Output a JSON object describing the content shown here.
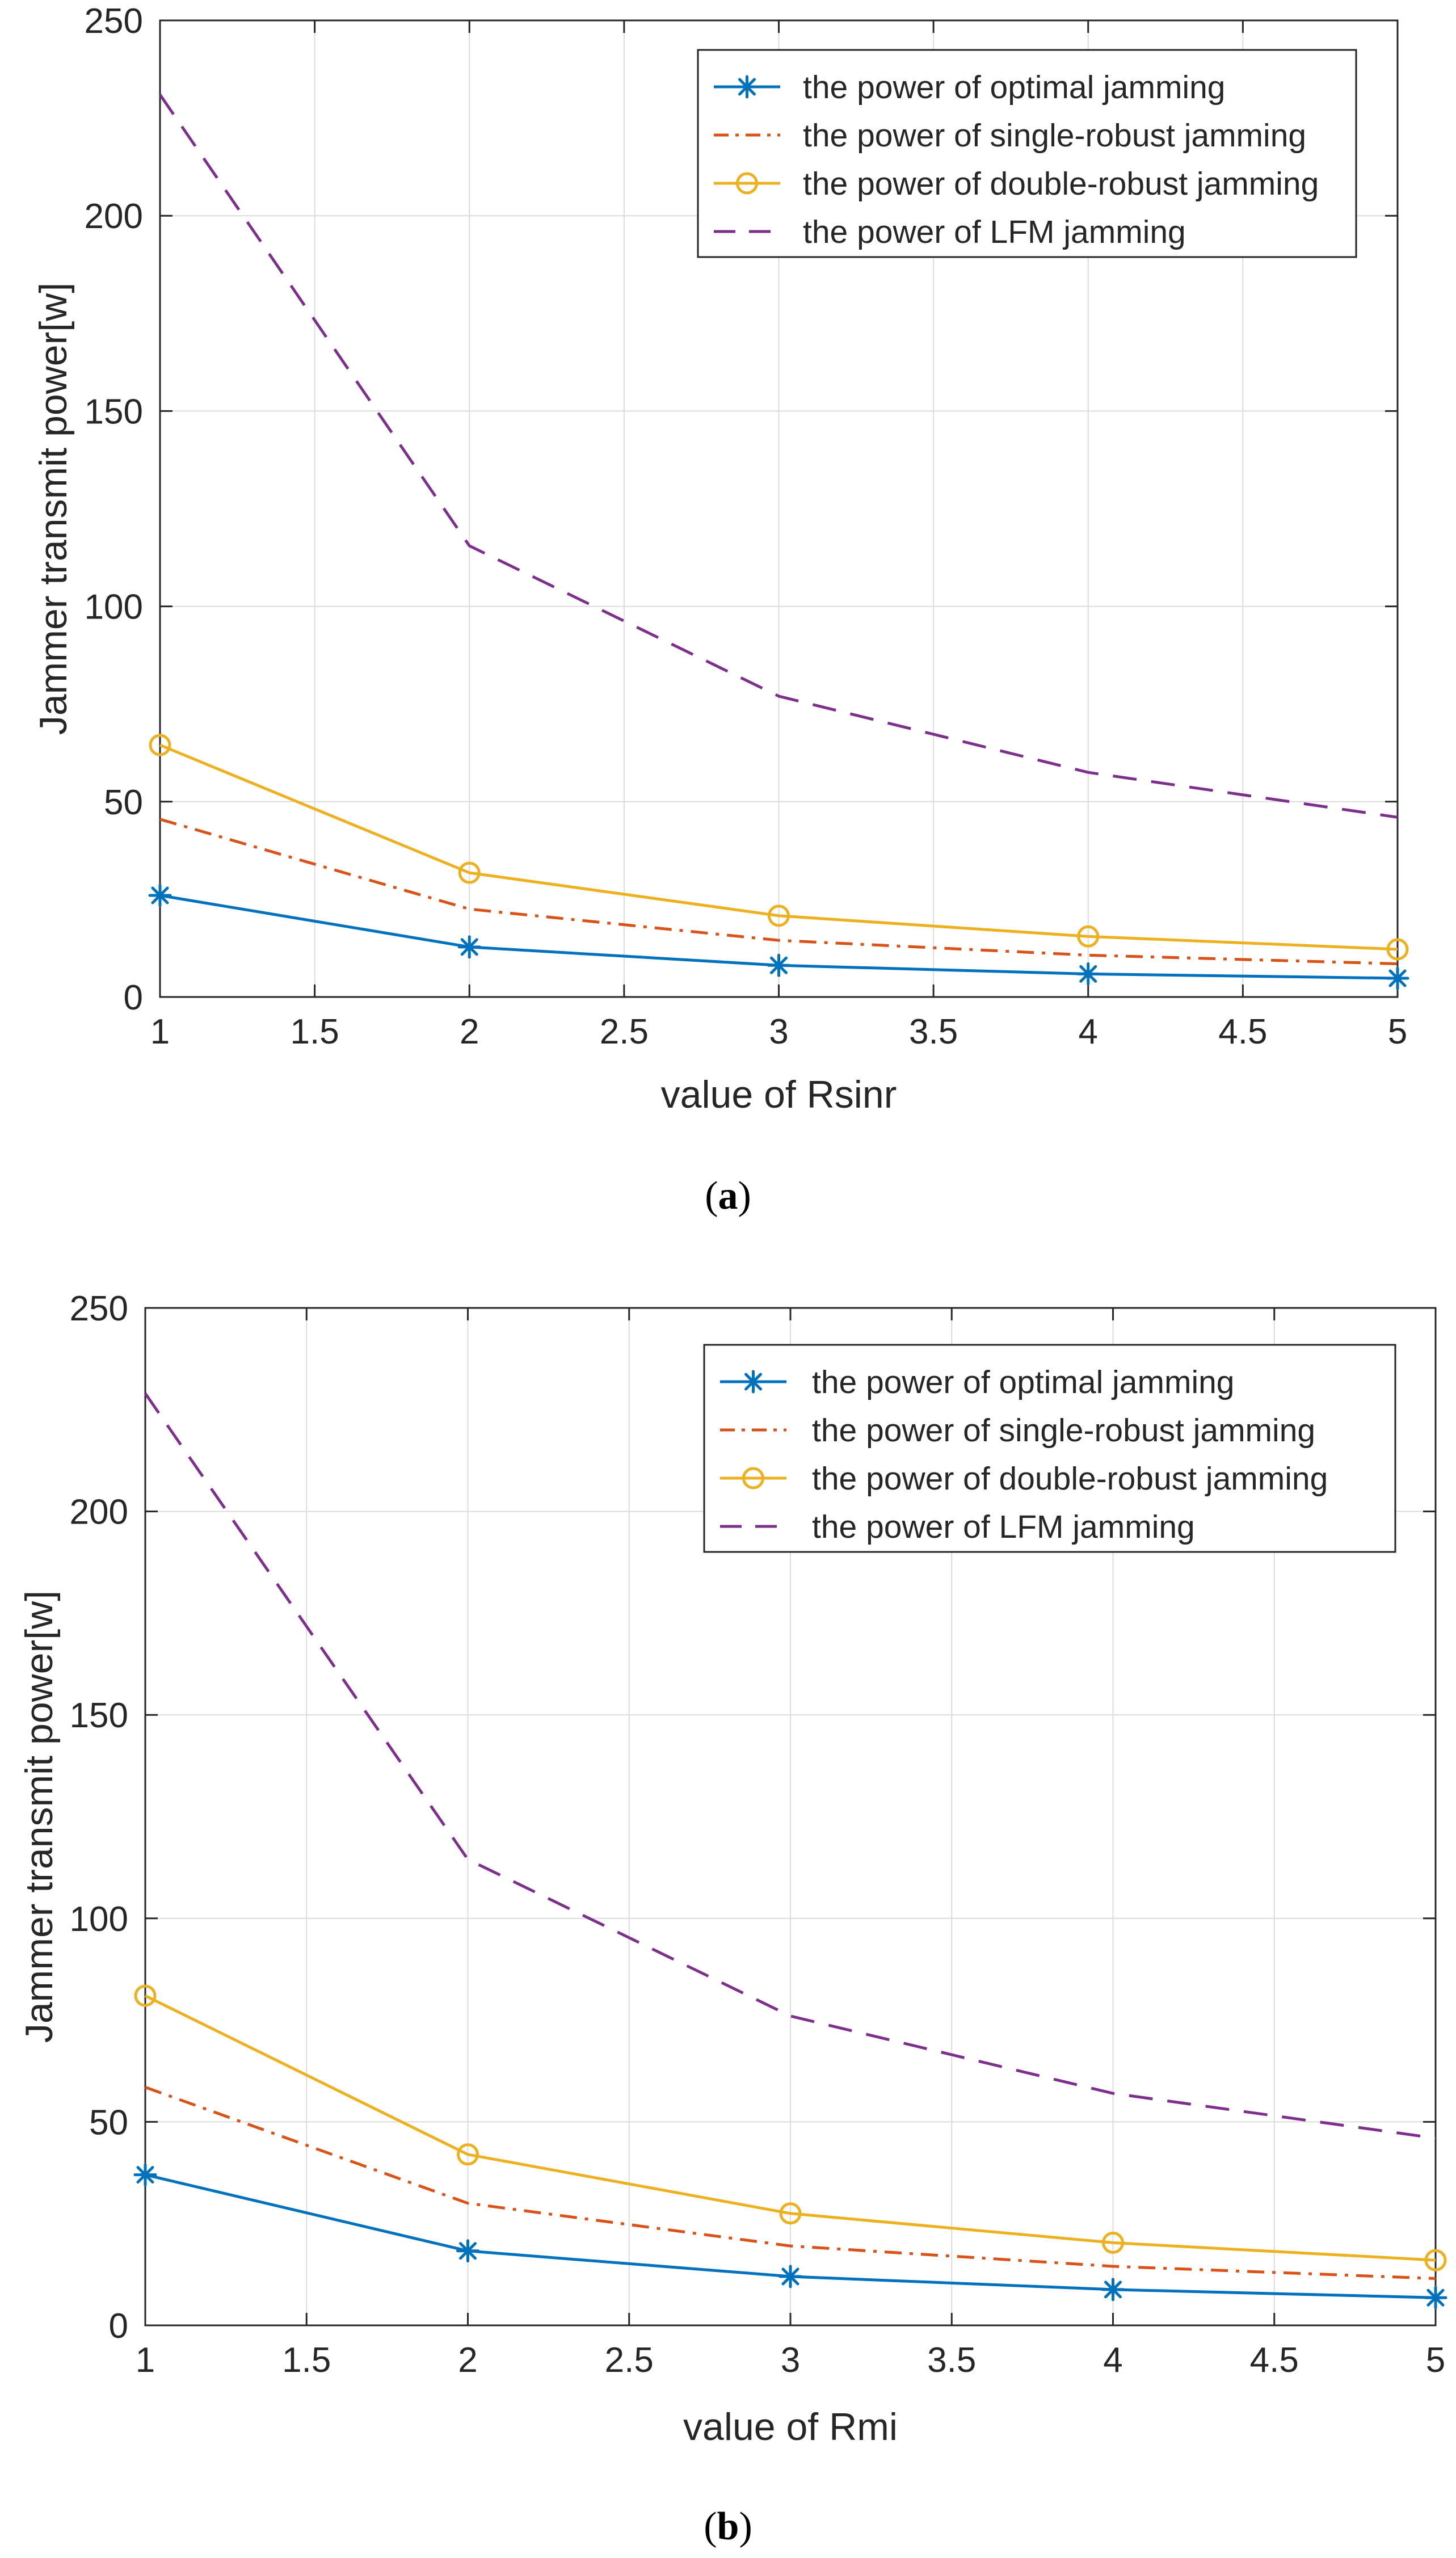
{
  "figure": {
    "colors": {
      "optimal": "#0072BD",
      "single": "#D95319",
      "double": "#EDB120",
      "lfm": "#7E2F8E",
      "grid": "#dcdcdc",
      "axis": "#262626"
    }
  },
  "chart_data": [
    {
      "id": "a",
      "type": "line",
      "caption": {
        "open": "(",
        "letter": "a",
        "close": ")"
      },
      "xlabel": "value of Rsinr",
      "ylabel": "Jammer transmit power[w]",
      "xlim": [
        1,
        5
      ],
      "ylim": [
        0,
        250
      ],
      "xticks": [
        1,
        1.5,
        2,
        2.5,
        3,
        3.5,
        4,
        4.5,
        5
      ],
      "xtick_labels": [
        "1",
        "1.5",
        "2",
        "2.5",
        "3",
        "3.5",
        "4",
        "4.5",
        "5"
      ],
      "yticks": [
        0,
        50,
        100,
        150,
        200,
        250
      ],
      "ytick_labels": [
        "0",
        "50",
        "100",
        "150",
        "200",
        "250"
      ],
      "grid": true,
      "legend_position": "top-right",
      "x": [
        1,
        2,
        3,
        4,
        5
      ],
      "series": [
        {
          "key": "optimal",
          "name": "the power of optimal jamming",
          "values": [
            26,
            12.8,
            8.1,
            5.9,
            4.8
          ],
          "style": "solid",
          "marker": "asterisk"
        },
        {
          "key": "single",
          "name": "the power of single-robust jamming",
          "values": [
            45.5,
            22.5,
            14.5,
            10.7,
            8.5
          ],
          "style": "dashdot",
          "marker": "none"
        },
        {
          "key": "double",
          "name": "the power of double-robust jamming",
          "values": [
            64.5,
            31.8,
            20.8,
            15.5,
            12.2
          ],
          "style": "solid",
          "marker": "circle"
        },
        {
          "key": "lfm",
          "name": "the power of LFM jamming",
          "values": [
            231,
            115.5,
            77,
            57.5,
            46
          ],
          "style": "dashed",
          "marker": "none"
        }
      ]
    },
    {
      "id": "b",
      "type": "line",
      "caption": {
        "open": "(",
        "letter": "b",
        "close": ")"
      },
      "xlabel": "value of Rmi",
      "ylabel": "Jammer transmit power[w]",
      "xlim": [
        1,
        5
      ],
      "ylim": [
        0,
        250
      ],
      "xticks": [
        1,
        1.5,
        2,
        2.5,
        3,
        3.5,
        4,
        4.5,
        5
      ],
      "xtick_labels": [
        "1",
        "1.5",
        "2",
        "2.5",
        "3",
        "3.5",
        "4",
        "4.5",
        "5"
      ],
      "yticks": [
        0,
        50,
        100,
        150,
        200,
        250
      ],
      "ytick_labels": [
        "0",
        "50",
        "100",
        "150",
        "200",
        "250"
      ],
      "grid": true,
      "legend_position": "top-right",
      "x": [
        1,
        2,
        3,
        4,
        5
      ],
      "series": [
        {
          "key": "optimal",
          "name": "the power of optimal jamming",
          "values": [
            37,
            18.3,
            12,
            8.8,
            6.8
          ],
          "style": "solid",
          "marker": "asterisk"
        },
        {
          "key": "single",
          "name": "the power of single-robust jamming",
          "values": [
            58.5,
            30,
            19.5,
            14.5,
            11.5
          ],
          "style": "dashdot",
          "marker": "none"
        },
        {
          "key": "double",
          "name": "the power of double-robust jamming",
          "values": [
            81,
            42,
            27.5,
            20.3,
            16
          ],
          "style": "solid",
          "marker": "circle"
        },
        {
          "key": "lfm",
          "name": "the power of LFM jamming",
          "values": [
            229,
            114.5,
            76,
            57,
            46
          ],
          "style": "dashed",
          "marker": "none"
        }
      ]
    }
  ]
}
